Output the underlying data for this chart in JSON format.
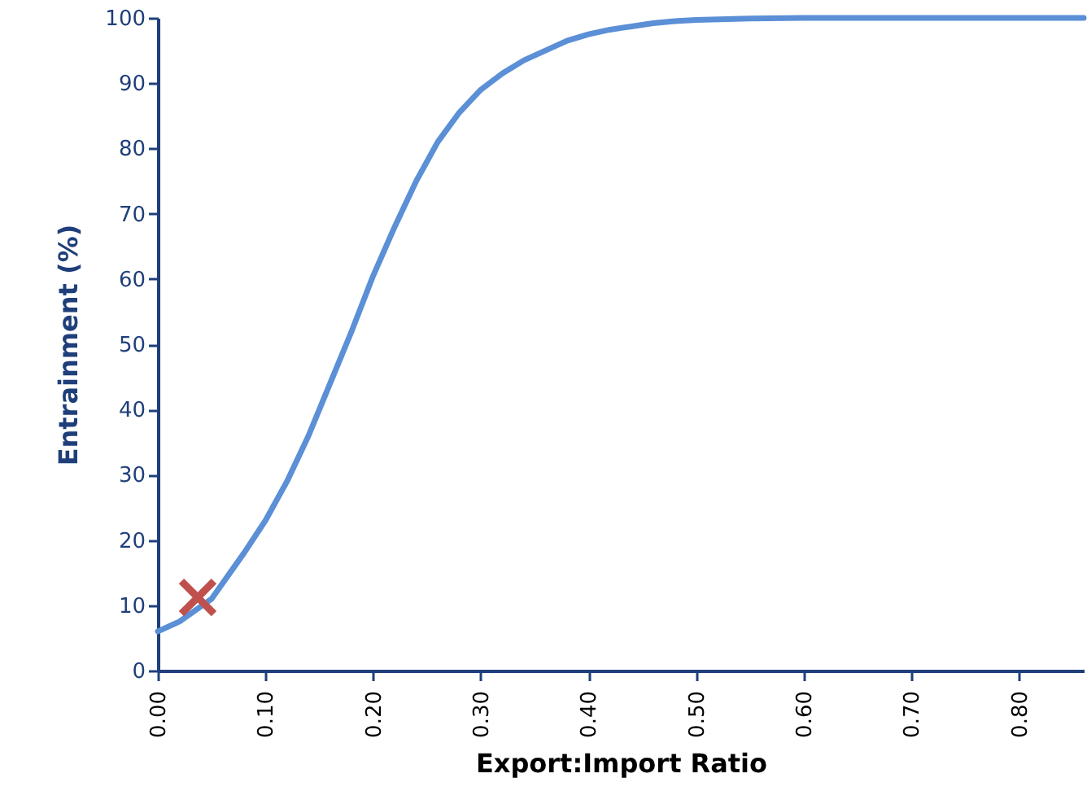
{
  "chart_data": {
    "type": "line",
    "xlabel": "Export:Import Ratio",
    "ylabel": "Entrainment (%)",
    "xlim": [
      0,
      0.86
    ],
    "ylim": [
      0,
      100
    ],
    "xticks": [
      {
        "value": 0,
        "label": "0.00"
      },
      {
        "value": 0.1,
        "label": "0.10"
      },
      {
        "value": 0.2,
        "label": "0.20"
      },
      {
        "value": 0.3,
        "label": "0.30"
      },
      {
        "value": 0.4,
        "label": "0.40"
      },
      {
        "value": 0.5,
        "label": "0.50"
      },
      {
        "value": 0.6,
        "label": "0.60"
      },
      {
        "value": 0.7,
        "label": "0.70"
      },
      {
        "value": 0.8,
        "label": "0.80"
      }
    ],
    "yticks": [
      0,
      10,
      20,
      30,
      40,
      50,
      60,
      70,
      80,
      90,
      100
    ],
    "grid": false,
    "series": [
      {
        "color": "#5b8fd6",
        "marker": "none",
        "line_style": "solid",
        "x": [
          0,
          0.02,
          0.05,
          0.08,
          0.1,
          0.12,
          0.14,
          0.16,
          0.18,
          0.2,
          0.22,
          0.24,
          0.26,
          0.28,
          0.3,
          0.32,
          0.34,
          0.36,
          0.38,
          0.4,
          0.42,
          0.44,
          0.46,
          0.48,
          0.5,
          0.55,
          0.6,
          0.86
        ],
        "values": [
          6,
          7.5,
          11,
          18,
          23,
          29,
          36,
          44,
          52,
          60.5,
          68,
          75,
          81,
          85.5,
          89,
          91.5,
          93.5,
          95,
          96.5,
          97.5,
          98.2,
          98.7,
          99.2,
          99.5,
          99.7,
          99.9,
          100,
          100
        ]
      },
      {
        "type": "scatter",
        "color": "#c0504d",
        "marker": "cross",
        "x": [
          0.037
        ],
        "values": [
          11.2
        ]
      }
    ]
  }
}
